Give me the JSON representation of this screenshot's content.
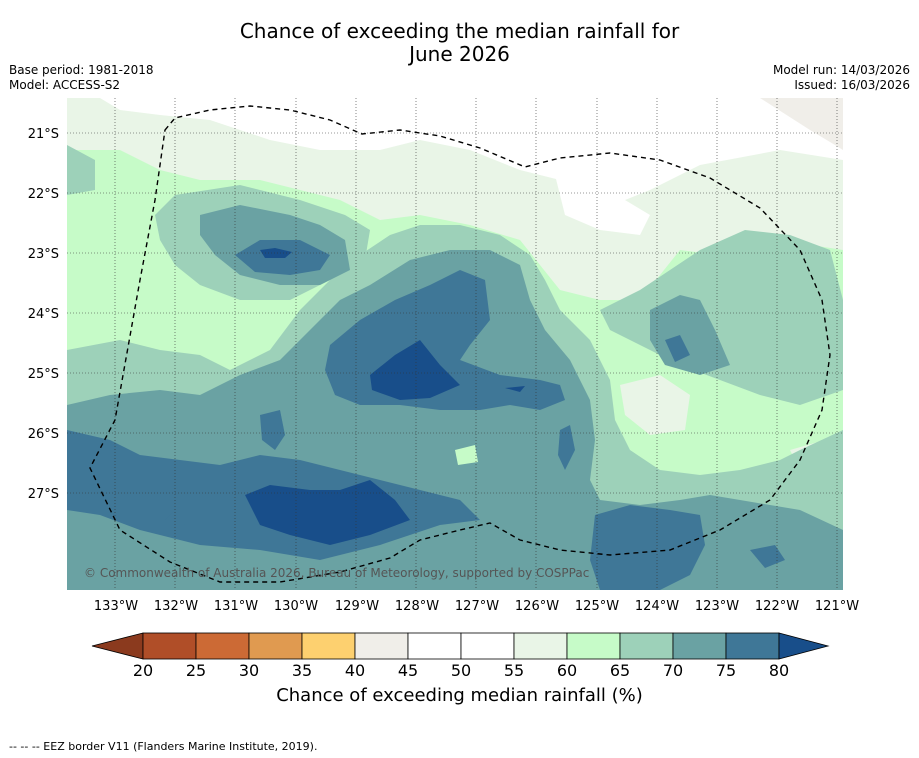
{
  "title": {
    "line1": "Chance of exceeding the median rainfall for",
    "line2": "June 2026"
  },
  "meta": {
    "base_period": "Base period: 1981-2018",
    "model": "Model: ACCESS-S2",
    "model_run": "Model run: 14/03/2026",
    "issued": "Issued: 16/03/2026"
  },
  "map": {
    "lat_labels": [
      "21°S",
      "22°S",
      "23°S",
      "24°S",
      "25°S",
      "26°S",
      "27°S"
    ],
    "lon_labels": [
      "133°W",
      "132°W",
      "131°W",
      "130°W",
      "129°W",
      "128°W",
      "127°W",
      "126°W",
      "125°W",
      "124°W",
      "123°W",
      "122°W",
      "121°W"
    ],
    "copyright": "© Commonwealth of Australia 2026, Bureau of Meteorology, supported by COSPPac"
  },
  "colorbar": {
    "label": "Chance of exceeding median rainfall (%)",
    "ticks": [
      "20",
      "25",
      "30",
      "35",
      "40",
      "45",
      "50",
      "55",
      "60",
      "65",
      "70",
      "75",
      "80"
    ],
    "colors": [
      "#8b3a1e",
      "#b04e28",
      "#cc6a35",
      "#e09a50",
      "#fdd06f",
      "#f0eee9",
      "#ffffff",
      "#ffffff",
      "#e9f5e7",
      "#c6fbc8",
      "#9dd1b9",
      "#6aa2a3",
      "#3f7797",
      "#184e8a"
    ]
  },
  "footer": "--  --  -- EEZ border V11 (Flanders Marine Institute, 2019).",
  "colors": {
    "c45": "#f0eee9",
    "c55": "#e9f5e7",
    "c60": "#c6fbc8",
    "c65": "#9dd1b9",
    "c70": "#6aa2a3",
    "c75": "#3f7797",
    "c80": "#184e8a"
  }
}
